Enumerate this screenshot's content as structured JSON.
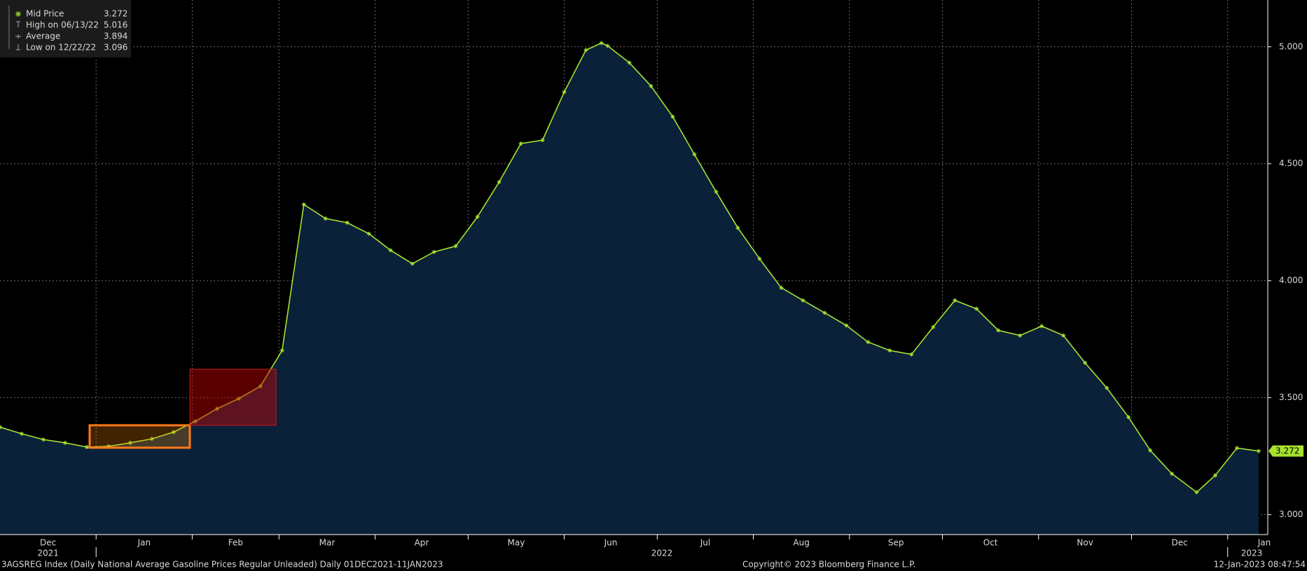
{
  "chart_data": {
    "type": "area",
    "x": [
      "2021-12-01",
      "2021-12-08",
      "2021-12-15",
      "2021-12-22",
      "2021-12-29",
      "2022-01-05",
      "2022-01-12",
      "2022-01-19",
      "2022-01-26",
      "2022-02-02",
      "2022-02-09",
      "2022-02-16",
      "2022-02-23",
      "2022-03-02",
      "2022-03-09",
      "2022-03-16",
      "2022-03-23",
      "2022-03-30",
      "2022-04-06",
      "2022-04-13",
      "2022-04-20",
      "2022-04-27",
      "2022-05-04",
      "2022-05-11",
      "2022-05-18",
      "2022-05-25",
      "2022-06-01",
      "2022-06-08",
      "2022-06-13",
      "2022-06-15",
      "2022-06-22",
      "2022-06-29",
      "2022-07-06",
      "2022-07-13",
      "2022-07-20",
      "2022-07-27",
      "2022-08-03",
      "2022-08-10",
      "2022-08-17",
      "2022-08-24",
      "2022-08-31",
      "2022-09-07",
      "2022-09-14",
      "2022-09-21",
      "2022-09-28",
      "2022-10-05",
      "2022-10-12",
      "2022-10-19",
      "2022-10-26",
      "2022-11-02",
      "2022-11-09",
      "2022-11-16",
      "2022-11-23",
      "2022-11-30",
      "2022-12-07",
      "2022-12-14",
      "2022-12-22",
      "2022-12-28",
      "2023-01-04",
      "2023-01-11"
    ],
    "series": [
      {
        "name": "Mid Price",
        "color": "#a6e22e",
        "values": [
          3.374,
          3.346,
          3.321,
          3.307,
          3.289,
          3.292,
          3.307,
          3.324,
          3.353,
          3.399,
          3.453,
          3.496,
          3.549,
          3.702,
          4.326,
          4.266,
          4.248,
          4.201,
          4.13,
          4.073,
          4.123,
          4.148,
          4.273,
          4.422,
          4.586,
          4.601,
          4.807,
          4.986,
          5.016,
          5.004,
          4.932,
          4.832,
          4.701,
          4.54,
          4.38,
          4.226,
          4.094,
          3.97,
          3.916,
          3.863,
          3.809,
          3.738,
          3.702,
          3.685,
          3.802,
          3.916,
          3.88,
          3.788,
          3.766,
          3.806,
          3.766,
          3.649,
          3.542,
          3.417,
          3.275,
          3.175,
          3.096,
          3.168,
          3.285,
          3.272
        ]
      }
    ],
    "area_color": "#0a2139",
    "xlim": [
      "2021-12-01",
      "2023-01-11"
    ],
    "ylim": [
      2.915,
      5.2
    ],
    "yticks": [
      {
        "value": 3,
        "label": "3.000"
      },
      {
        "value": 3.5,
        "label": "3.500"
      },
      {
        "value": 4,
        "label": "4.000"
      },
      {
        "value": 4.5,
        "label": "4.500"
      },
      {
        "value": 5,
        "label": "5.000"
      }
    ],
    "month_ticks": [
      {
        "value": "2021-12",
        "label": "Dec"
      },
      {
        "value": "2022-01",
        "label": "Jan"
      },
      {
        "value": "2022-02",
        "label": "Feb"
      },
      {
        "value": "2022-03",
        "label": "Mar"
      },
      {
        "value": "2022-04",
        "label": "Apr"
      },
      {
        "value": "2022-05",
        "label": "May"
      },
      {
        "value": "2022-06",
        "label": "Jun"
      },
      {
        "value": "2022-07",
        "label": "Jul"
      },
      {
        "value": "2022-08",
        "label": "Aug"
      },
      {
        "value": "2022-09",
        "label": "Sep"
      },
      {
        "value": "2022-10",
        "label": "Oct"
      },
      {
        "value": "2022-11",
        "label": "Nov"
      },
      {
        "value": "2022-12",
        "label": "Dec"
      },
      {
        "value": "2023-01",
        "label": "Jan"
      }
    ],
    "year_ticks": [
      {
        "value": "2021-12",
        "label": "2021"
      },
      {
        "value": "2022",
        "label": "2022"
      },
      {
        "value": "2023-01",
        "label": "2023"
      }
    ],
    "grid": true,
    "legend": [
      {
        "label": "Mid Price",
        "value": 3.272
      },
      {
        "label": "High on 06/13/22",
        "value": 5.016
      },
      {
        "label": "Average",
        "value": 3.894
      },
      {
        "label": "Low on 12/22/22",
        "value": 3.096
      }
    ],
    "source": "3AGSREG Index (Daily National Average Gasoline Prices Regular Unleaded)  Daily 01DEC2021-11JAN2023",
    "copyright": "Copyright© 2023 Bloomberg Finance L.P.",
    "timestamp": "12-Jan-2023 08:47:54"
  }
}
